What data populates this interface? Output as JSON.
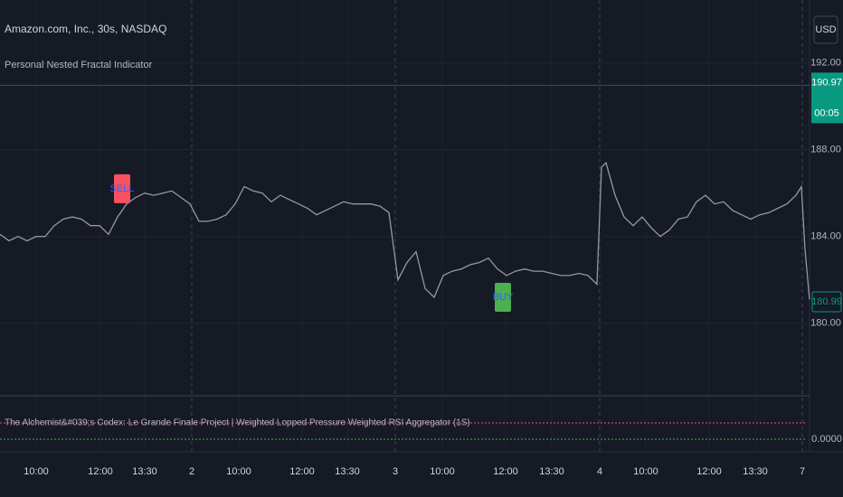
{
  "chart_data": {
    "type": "line",
    "title": "Amazon.com, Inc., 30s, NASDAQ",
    "subtitle": "Personal Nested Fractal Indicator",
    "currency": "USD",
    "color": "#9598a1",
    "grid": true,
    "xlim": [
      0,
      89.5
    ],
    "ylim": [
      176.7,
      194.9
    ],
    "yticks": [
      {
        "value": 180,
        "label": "180.00"
      },
      {
        "value": 184,
        "label": "184.00"
      },
      {
        "value": 188,
        "label": "188.00"
      },
      {
        "value": 192,
        "label": "192.00"
      }
    ],
    "xticks": [
      {
        "value": 4,
        "label": "10:00"
      },
      {
        "value": 11.1,
        "label": "12:00"
      },
      {
        "value": 16,
        "label": "13:30"
      },
      {
        "value": 21.2,
        "label": "2"
      },
      {
        "value": 26.4,
        "label": "10:00"
      },
      {
        "value": 33.4,
        "label": "12:00"
      },
      {
        "value": 38.4,
        "label": "13:30"
      },
      {
        "value": 43.7,
        "label": "3"
      },
      {
        "value": 48.9,
        "label": "10:00"
      },
      {
        "value": 55.9,
        "label": "12:00"
      },
      {
        "value": 61,
        "label": "13:30"
      },
      {
        "value": 66.3,
        "label": "4"
      },
      {
        "value": 71.4,
        "label": "10:00"
      },
      {
        "value": 78.4,
        "label": "12:00"
      },
      {
        "value": 83.5,
        "label": "13:30"
      },
      {
        "value": 88.7,
        "label": "7"
      }
    ],
    "x": [
      0,
      1,
      2,
      3,
      4,
      5,
      6,
      7,
      8,
      9,
      10,
      11,
      12,
      13,
      14,
      15,
      16,
      17,
      18,
      19,
      20,
      21,
      22,
      23,
      24,
      25,
      26,
      27,
      28,
      29,
      30,
      31,
      32,
      33,
      34,
      35,
      36,
      37,
      38,
      39,
      40,
      41,
      42,
      43,
      44,
      45,
      46,
      47,
      48,
      49,
      50,
      51,
      52,
      53,
      54,
      55,
      56,
      57,
      58,
      59,
      60,
      61,
      62,
      63,
      64,
      65,
      66,
      66.5,
      67,
      68,
      69,
      70,
      71,
      72,
      73,
      74,
      75,
      76,
      77,
      78,
      79,
      80,
      81,
      82,
      83,
      84,
      85,
      86,
      87,
      88,
      88.6,
      89,
      89.5
    ],
    "values": [
      184.1,
      183.8,
      184.0,
      183.8,
      184.0,
      184.0,
      184.5,
      184.8,
      184.9,
      184.8,
      184.5,
      184.5,
      184.1,
      184.9,
      185.5,
      185.8,
      186.0,
      185.9,
      186.0,
      186.1,
      185.8,
      185.5,
      184.7,
      184.7,
      184.8,
      185.0,
      185.5,
      186.3,
      186.1,
      186.0,
      185.6,
      185.9,
      185.7,
      185.5,
      185.3,
      185.0,
      185.2,
      185.4,
      185.6,
      185.5,
      185.5,
      185.5,
      185.4,
      185.1,
      182.0,
      182.8,
      183.3,
      181.6,
      181.2,
      182.2,
      182.4,
      182.5,
      182.7,
      182.8,
      183.0,
      182.5,
      182.2,
      182.4,
      182.5,
      182.4,
      182.4,
      182.3,
      182.2,
      182.2,
      182.3,
      182.2,
      181.8,
      187.2,
      187.4,
      185.9,
      184.9,
      184.5,
      184.9,
      184.4,
      184.0,
      184.3,
      184.8,
      184.9,
      185.6,
      185.9,
      185.5,
      185.6,
      185.2,
      185.0,
      184.8,
      185.0,
      185.1,
      185.3,
      185.5,
      185.9,
      186.3,
      183.4,
      181.1
    ],
    "annotations": [
      {
        "text": "SELL",
        "x": 13.5,
        "y": 186.2,
        "color": "#f7525f"
      },
      {
        "text": "BUY",
        "x": 55.6,
        "y": 181.2,
        "color": "#4caf50"
      }
    ],
    "price_line": {
      "value": 190.97,
      "countdown": "00:05",
      "color": "#089981"
    },
    "last_price": {
      "value": 180.99,
      "color": "#089981"
    },
    "indicator": {
      "title": "The Alchemist&#039;s Codex: Le Grande Finale Project | Weighted Lopped Pressure Weighted RSI Aggregator (1S)",
      "yticks": [
        {
          "value": 0,
          "label": "0.0000"
        }
      ]
    }
  }
}
